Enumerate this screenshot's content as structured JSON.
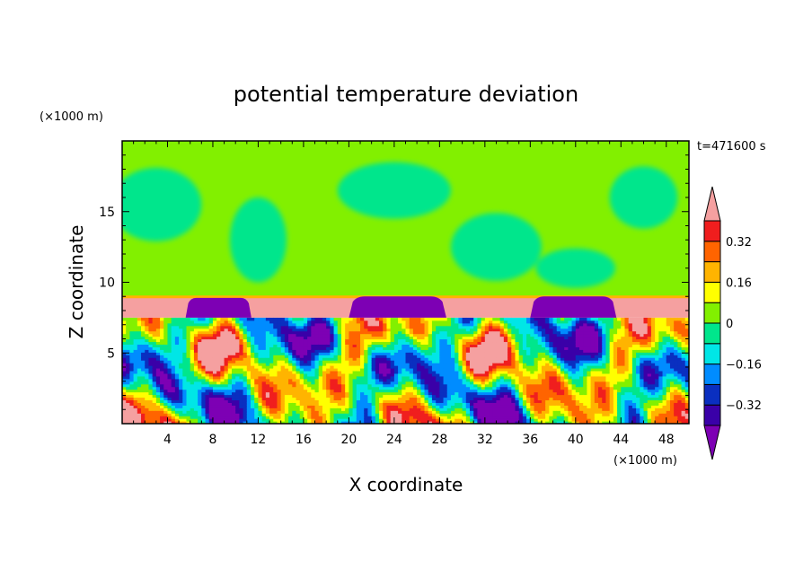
{
  "chart_data": {
    "type": "heatmap",
    "title": "potential temperature deviation",
    "xlabel": "X coordinate",
    "ylabel": "Z coordinate",
    "x_unit_label": "(×1000 m)",
    "y_unit_label": "(×1000 m)",
    "time_label": "t=471600 s",
    "xlim": [
      0,
      50
    ],
    "ylim": [
      0,
      20
    ],
    "x_ticks": [
      4,
      8,
      12,
      16,
      20,
      24,
      28,
      32,
      36,
      40,
      44,
      48
    ],
    "x_tick_labels": [
      "4",
      "8",
      "12",
      "16",
      "20",
      "24",
      "28",
      "32",
      "36",
      "40",
      "44",
      "48"
    ],
    "y_ticks": [
      5,
      10,
      15
    ],
    "y_tick_labels": [
      "5",
      "10",
      "15"
    ],
    "colorbar": {
      "levels": [
        -0.4,
        -0.32,
        -0.24,
        -0.16,
        -0.08,
        0,
        0.08,
        0.16,
        0.24,
        0.32,
        0.4
      ],
      "tick_values": [
        -0.32,
        -0.16,
        0,
        0.16,
        0.32
      ],
      "tick_labels": [
        "−0.32",
        "−0.16",
        "0",
        "0.16",
        "0.32"
      ],
      "colors": [
        "#7d00b4",
        "#3a00a8",
        "#0a2fc0",
        "#008cff",
        "#00e6e6",
        "#00e68c",
        "#82f000",
        "#ffff00",
        "#ffb400",
        "#ff6400",
        "#f01e1e",
        "#f5a0a0"
      ],
      "extend": "both"
    },
    "fields": {
      "upper_value": 0.05,
      "layer_value": 0.45,
      "layer_z_range": [
        7.5,
        9.0
      ],
      "domes": [
        {
          "x_range": [
            5.6,
            11.4
          ],
          "z_top": 8.9,
          "value": -0.45
        },
        {
          "x_range": [
            20.0,
            28.6
          ],
          "z_top": 9.0,
          "value": -0.45
        },
        {
          "x_range": [
            36.0,
            43.6
          ],
          "z_top": 9.0,
          "value": -0.45
        }
      ]
    }
  }
}
